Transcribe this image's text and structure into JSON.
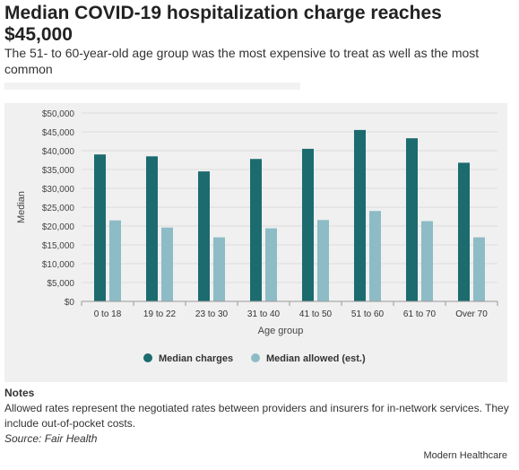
{
  "header": {
    "title": "Median COVID-19 hospitalization charge reaches $45,000",
    "subtitle": "The 51- to 60-year-old age group was the most expensive to treat as well as the most common"
  },
  "colors": {
    "median_charges": "#1c6b6f",
    "median_allowed": "#8dbcc6",
    "grid": "#dcdcdc",
    "chart_background": "#f0f0f0"
  },
  "chart_data": {
    "type": "bar",
    "categories": [
      "0 to 18",
      "19 to 22",
      "23 to 30",
      "31 to 40",
      "41 to 50",
      "51 to 60",
      "61 to 70",
      "Over 70"
    ],
    "series": [
      {
        "name": "Median charges",
        "values": [
          39000,
          38500,
          34500,
          37800,
          40500,
          45500,
          43300,
          36800
        ]
      },
      {
        "name": "Median allowed (est.)",
        "values": [
          21500,
          19600,
          17000,
          19400,
          21600,
          24000,
          21300,
          17000
        ]
      }
    ],
    "xlabel": "Age group",
    "ylabel": "Median",
    "ylim": [
      0,
      50000
    ],
    "yticks": [
      0,
      5000,
      10000,
      15000,
      20000,
      25000,
      30000,
      35000,
      40000,
      45000,
      50000
    ],
    "ytick_labels": [
      "$0",
      "$5,000",
      "$10,000",
      "$15,000",
      "$20,000",
      "$25,000",
      "$30,000",
      "$35,000",
      "$40,000",
      "$45,000",
      "$50,000"
    ],
    "grid": true,
    "legend": "bottom-center"
  },
  "footer": {
    "notes_label": "Notes",
    "notes_text": "Allowed rates represent the negotiated rates between providers and insurers for in-network services. They include out-of-pocket costs.",
    "source": "Source: Fair Health",
    "credit": "Modern Healthcare"
  }
}
